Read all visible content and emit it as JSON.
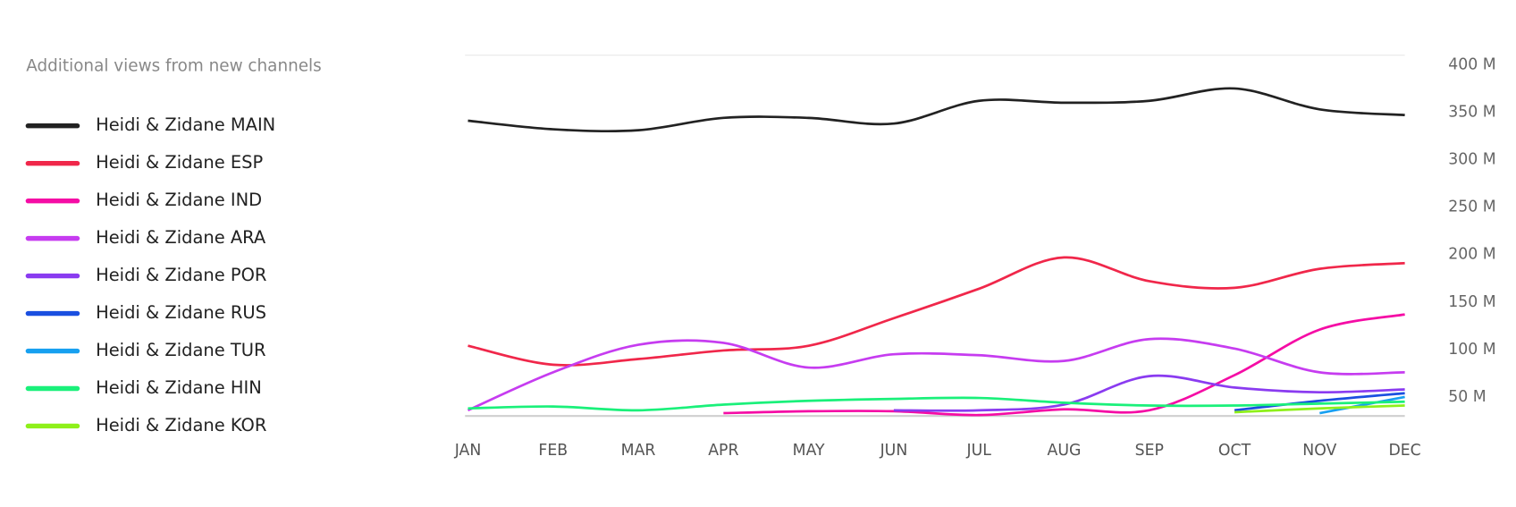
{
  "chart_data": {
    "type": "line",
    "title": "Additional views from new channels",
    "categories": [
      "JAN",
      "FEB",
      "MAR",
      "APR",
      "MAY",
      "JUN",
      "JUL",
      "AUG",
      "SEP",
      "OCT",
      "NOV",
      "DEC"
    ],
    "series": [
      {
        "name": "Heidi & Zidane MAIN",
        "color": "#222222",
        "values": [
          341,
          332,
          331,
          344,
          344,
          338,
          362,
          360,
          362,
          375,
          353,
          347
        ]
      },
      {
        "name": "Heidi & Zidane ESP",
        "color": "#f0274a",
        "values": [
          104,
          84,
          90,
          99,
          104,
          133,
          164,
          197,
          172,
          165,
          185,
          191
        ]
      },
      {
        "name": "Heidi & Zidane IND",
        "color": "#f50ca5",
        "values": [
          null,
          null,
          null,
          33,
          35,
          35,
          31,
          37,
          36,
          73,
          121,
          137
        ]
      },
      {
        "name": "Heidi & Zidane ARA",
        "color": "#c63cf0",
        "values": [
          36,
          76,
          105,
          107,
          81,
          95,
          94,
          88,
          111,
          101,
          76,
          76
        ]
      },
      {
        "name": "Heidi & Zidane POR",
        "color": "#8a3bf0",
        "values": [
          null,
          null,
          null,
          null,
          null,
          36,
          36,
          42,
          72,
          60,
          55,
          58
        ]
      },
      {
        "name": "Heidi & Zidane RUS",
        "color": "#1a4fe0",
        "values": [
          null,
          null,
          null,
          null,
          null,
          null,
          null,
          null,
          null,
          36,
          46,
          54
        ]
      },
      {
        "name": "Heidi & Zidane TUR",
        "color": "#17a0f0",
        "values": [
          null,
          null,
          null,
          null,
          null,
          null,
          null,
          null,
          null,
          null,
          33,
          50
        ]
      },
      {
        "name": "Heidi & Zidane HIN",
        "color": "#1af07a",
        "values": [
          38,
          40,
          36,
          42,
          46,
          48,
          49,
          44,
          41,
          41,
          43,
          45
        ]
      },
      {
        "name": "Heidi & Zidane KOR",
        "color": "#8ef01a",
        "values": [
          null,
          null,
          null,
          null,
          null,
          null,
          null,
          null,
          null,
          34,
          38,
          41
        ]
      }
    ],
    "ylim": [
      30,
      410
    ],
    "yticks": [
      {
        "value": 50,
        "label": "50 M"
      },
      {
        "value": 100,
        "label": "100 M"
      },
      {
        "value": 150,
        "label": "150 M"
      },
      {
        "value": 200,
        "label": "200 M"
      },
      {
        "value": 250,
        "label": "250 M"
      },
      {
        "value": 300,
        "label": "300 M"
      },
      {
        "value": 350,
        "label": "350 M"
      },
      {
        "value": 400,
        "label": "400 M"
      }
    ]
  }
}
